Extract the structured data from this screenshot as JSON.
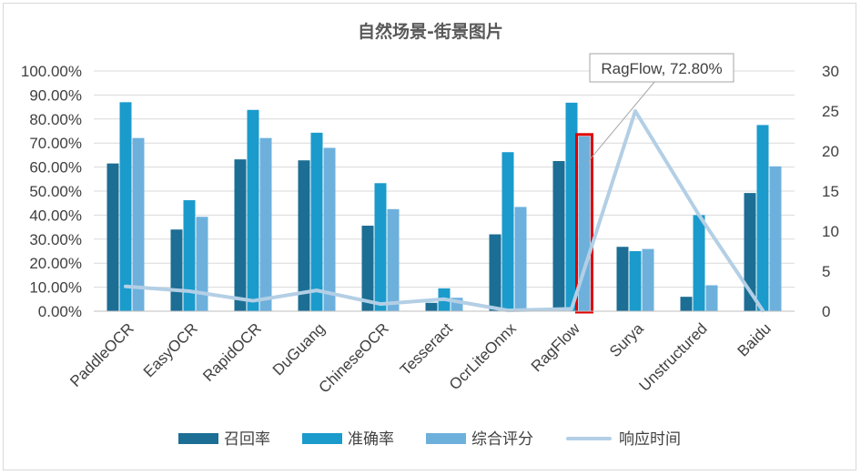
{
  "chart_data": {
    "type": "bar",
    "title": "自然场景-街景图片",
    "categories": [
      "PaddleOCR",
      "EasyOCR",
      "RapidOCR",
      "DuGuang",
      "ChineseOCR",
      "Tesseract",
      "OcrLiteOnnx",
      "RagFlow",
      "Surya",
      "Unstructured",
      "Baidu"
    ],
    "series": [
      {
        "name": "召回率",
        "type": "bar",
        "axis": "left",
        "color": "#1c6e94",
        "values": [
          61.5,
          34.0,
          63.2,
          62.8,
          35.6,
          3.5,
          32.0,
          62.5,
          26.8,
          6.0,
          49.2
        ]
      },
      {
        "name": "准确率",
        "type": "bar",
        "axis": "left",
        "color": "#1a9bcc",
        "values": [
          87.0,
          46.2,
          83.8,
          74.3,
          53.3,
          9.5,
          66.2,
          86.8,
          25.0,
          40.0,
          77.5
        ]
      },
      {
        "name": "综合评分",
        "type": "bar",
        "axis": "left",
        "color": "#6eb0dc",
        "values": [
          72.1,
          39.3,
          72.1,
          68.0,
          42.5,
          5.6,
          43.4,
          72.8,
          25.9,
          10.8,
          60.3
        ]
      },
      {
        "name": "响应时间",
        "type": "line",
        "axis": "right",
        "color": "#b3cfe5",
        "values": [
          3.1,
          2.5,
          1.3,
          2.6,
          0.9,
          1.5,
          0.1,
          0.3,
          25.0,
          12.0,
          0.1
        ]
      }
    ],
    "y_left": {
      "min": 0,
      "max": 100,
      "step": 10,
      "format": "percent2",
      "ticks": [
        "0.00%",
        "10.00%",
        "20.00%",
        "30.00%",
        "40.00%",
        "50.00%",
        "60.00%",
        "70.00%",
        "80.00%",
        "90.00%",
        "100.00%"
      ]
    },
    "y_right": {
      "min": 0,
      "max": 30,
      "step": 5,
      "ticks": [
        "0",
        "5",
        "10",
        "15",
        "20",
        "25",
        "30"
      ]
    },
    "grid": true,
    "legend_position": "bottom",
    "highlight": {
      "category": "RagFlow",
      "series": "综合评分",
      "color": "#e00000"
    },
    "annotation": {
      "text": "RagFlow, 72.80%"
    }
  }
}
